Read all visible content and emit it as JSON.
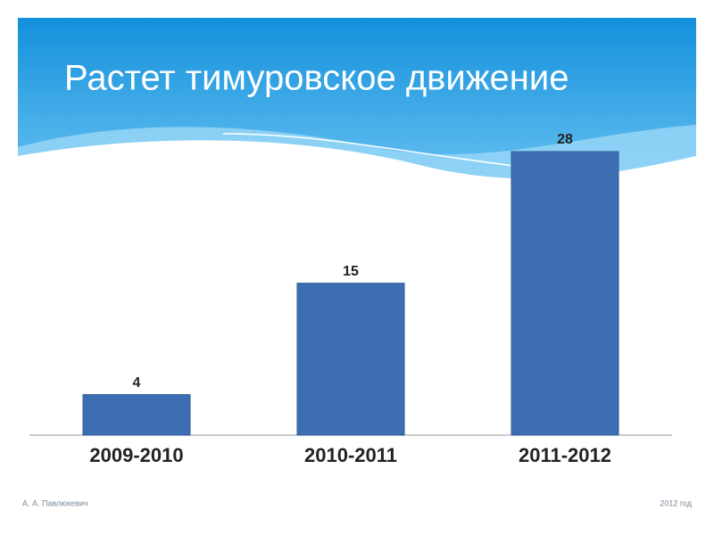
{
  "chart_data": {
    "type": "bar",
    "title": "Растет тимуровское движение",
    "categories": [
      "2009-2010",
      "2010-2011",
      "2011-2012"
    ],
    "values": [
      4,
      15,
      28
    ],
    "color": "#3d6eb4"
  },
  "footer": {
    "author": "А. А. Павлюкевич",
    "date": "2012 год"
  }
}
